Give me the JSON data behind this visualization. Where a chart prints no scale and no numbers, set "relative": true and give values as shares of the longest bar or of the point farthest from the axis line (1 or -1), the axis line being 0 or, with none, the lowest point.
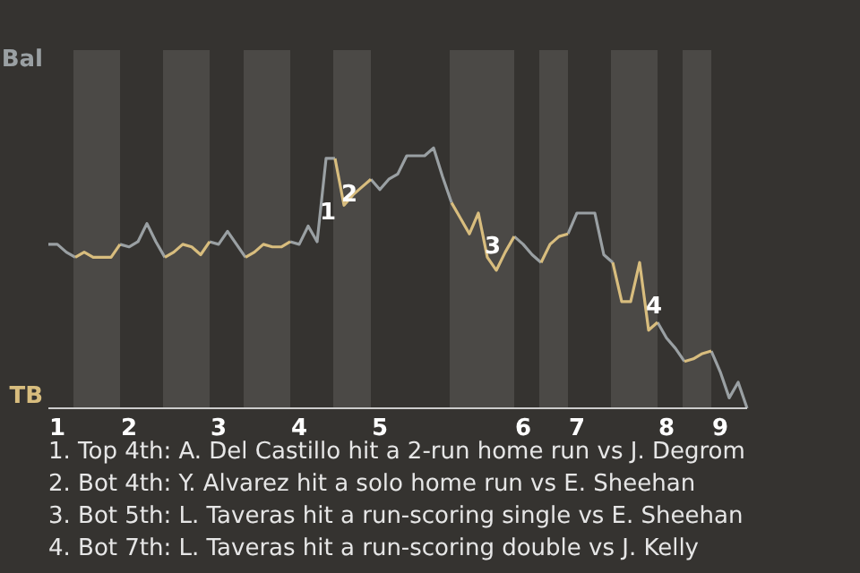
{
  "chart_data": {
    "type": "line",
    "categories": [
      null,
      "1",
      null,
      null,
      null,
      null,
      null,
      null,
      null,
      "2",
      null,
      null,
      null,
      null,
      null,
      null,
      null,
      null,
      null,
      "3",
      null,
      null,
      null,
      null,
      null,
      null,
      null,
      null,
      "4",
      null,
      null,
      null,
      null,
      null,
      null,
      null,
      null,
      "5",
      null,
      null,
      null,
      null,
      null,
      null,
      null,
      null,
      null,
      null,
      null,
      null,
      null,
      null,
      null,
      "6",
      null,
      null,
      null,
      null,
      null,
      "7",
      null,
      null,
      null,
      null,
      null,
      null,
      null,
      null,
      null,
      "8",
      null,
      null,
      null,
      null,
      null,
      "9",
      null,
      null,
      null
    ],
    "relative": true,
    "series": [
      {
        "name": "Bal",
        "color": "#9aa0a3",
        "values": [
          0.63,
          0.63,
          0.6,
          0.58,
          null,
          null,
          null,
          null,
          0.63,
          0.62,
          0.64,
          0.71,
          0.64,
          0.58,
          null,
          null,
          null,
          null,
          0.64,
          0.63,
          0.68,
          0.63,
          0.58,
          null,
          null,
          null,
          null,
          0.64,
          0.63,
          0.7,
          0.64,
          0.96,
          0.96,
          null,
          null,
          null,
          0.88,
          0.84,
          0.88,
          0.9,
          0.97,
          0.97,
          0.97,
          1,
          0.89,
          0.79,
          null,
          null,
          null,
          null,
          null,
          null,
          0.66,
          0.63,
          0.59,
          0.56,
          null,
          null,
          0.67,
          0.75,
          0.75,
          0.75,
          0.59,
          0.56,
          null,
          null,
          null,
          null,
          0.33,
          0.27,
          0.23,
          0.18,
          null,
          null,
          0.22,
          0.14,
          0.04,
          0.1,
          0
        ]
      },
      {
        "name": "TB",
        "color": "#d8bd7e",
        "values": [
          null,
          null,
          null,
          0.58,
          0.6,
          0.58,
          0.58,
          0.58,
          0.63,
          null,
          null,
          null,
          null,
          0.58,
          0.6,
          0.63,
          0.62,
          0.59,
          0.64,
          null,
          null,
          null,
          0.58,
          0.6,
          0.63,
          0.62,
          0.62,
          0.64,
          null,
          null,
          null,
          null,
          0.96,
          0.78,
          0.82,
          0.85,
          0.88,
          null,
          null,
          null,
          null,
          null,
          null,
          null,
          null,
          0.79,
          0.73,
          0.67,
          0.75,
          0.58,
          0.53,
          0.6,
          0.66,
          null,
          null,
          0.56,
          0.63,
          0.66,
          0.67,
          null,
          null,
          null,
          null,
          0.56,
          0.41,
          0.41,
          0.56,
          0.3,
          0.33,
          null,
          null,
          0.18,
          0.19,
          0.21,
          0.22,
          null,
          null,
          null,
          null
        ]
      }
    ],
    "legend": "left",
    "annotations": [
      {
        "text": "1",
        "y": 0.75
      },
      {
        "text": "2",
        "y": 0.82
      },
      {
        "text": "3",
        "y": 0.62
      },
      {
        "text": "4",
        "y": 0.39
      },
      "1. Top 4th: A. Del Castillo hit a 2-run home run vs J. Degrom",
      "2. Bot 4th: Y. Alvarez hit a solo home run vs E. Sheehan",
      "3. Bot 5th: L. Taveras hit a run-scoring single vs E. Sheehan",
      "4. Bot 7th: L. Taveras hit a run-scoring double vs J. Kelly"
    ]
  }
}
